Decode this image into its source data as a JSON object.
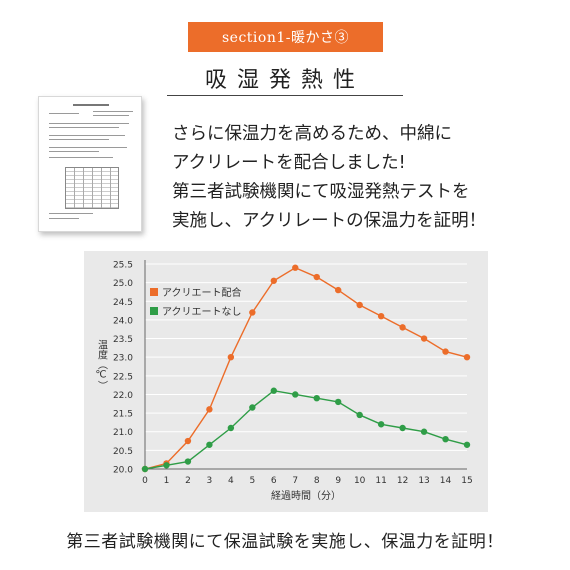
{
  "header": {
    "section_label": "section1-暖かさ③",
    "title": "吸湿発熱性"
  },
  "description": [
    "さらに保温力を高めるため、中綿に",
    "アクリレートを配合しました!",
    "第三者試験機関にて吸湿発熱テストを",
    "実施し、アクリレートの保温力を証明！"
  ],
  "colors": {
    "accent": "#ec6d2a",
    "series_orange": "#ec6d2a",
    "series_green": "#2f9d47",
    "chart_bg": "#e9e9e9"
  },
  "chart_data": {
    "type": "line",
    "xlabel": "経過時間（分）",
    "ylabel": "温度（℃）",
    "x": [
      0,
      1,
      2,
      3,
      4,
      5,
      6,
      7,
      8,
      9,
      10,
      11,
      12,
      13,
      14,
      15
    ],
    "xlim": [
      0,
      15
    ],
    "ylim": [
      20.0,
      25.5
    ],
    "yticks": [
      "20.0",
      "20.5",
      "21.0",
      "21.5",
      "22.0",
      "22.5",
      "23.0",
      "23.5",
      "24.0",
      "24.5",
      "25.0",
      "25.5"
    ],
    "legend_position": "top-left",
    "grid": true,
    "series": [
      {
        "name": "アクリエート配合",
        "color": "#ec6d2a",
        "values": [
          20.0,
          20.15,
          20.75,
          21.6,
          23.0,
          24.2,
          25.05,
          25.4,
          25.15,
          24.8,
          24.4,
          24.1,
          23.8,
          23.5,
          23.15,
          23.0
        ]
      },
      {
        "name": "アクリエートなし",
        "color": "#2f9d47",
        "values": [
          20.0,
          20.1,
          20.2,
          20.65,
          21.1,
          21.65,
          22.1,
          22.0,
          21.9,
          21.8,
          21.45,
          21.2,
          21.1,
          21.0,
          20.8,
          20.65
        ]
      }
    ]
  },
  "footer": {
    "text": "第三者試験機関にて保温試験を実施し、保温力を証明！"
  }
}
